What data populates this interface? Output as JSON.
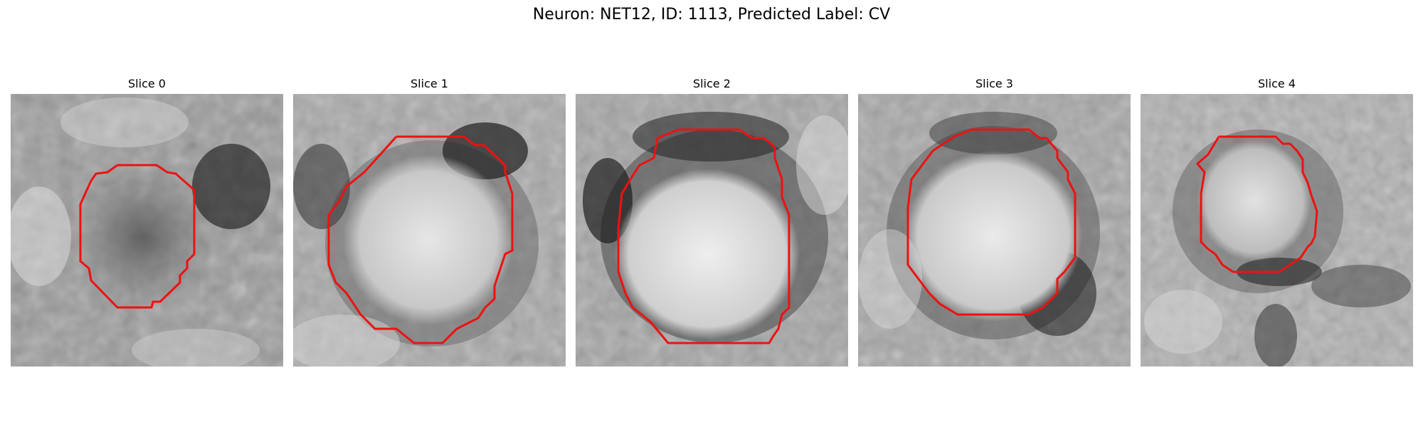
{
  "figure": {
    "title": "Neuron: NET12, ID: 1113, Predicted Label: CV"
  },
  "panels": [
    {
      "title": "Slice 0"
    },
    {
      "title": "Slice 1"
    },
    {
      "title": "Slice 2"
    },
    {
      "title": "Slice 3"
    },
    {
      "title": "Slice 4"
    }
  ],
  "colors": {
    "contour": "#ee1111",
    "background": "#ffffff"
  }
}
